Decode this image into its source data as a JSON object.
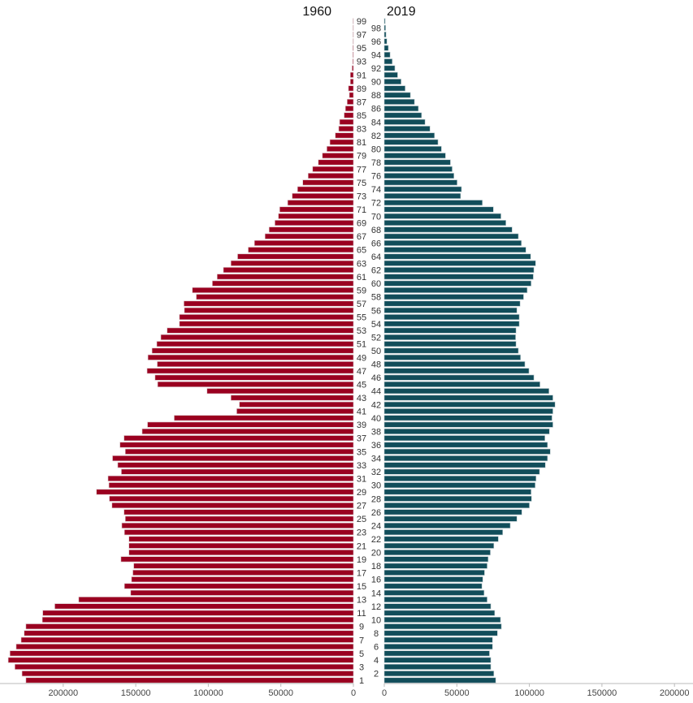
{
  "chart_data": {
    "type": "bar",
    "orientation": "horizontal-pyramid",
    "titles": {
      "left": "1960",
      "right": "2019"
    },
    "categories": [
      1,
      2,
      3,
      4,
      5,
      6,
      7,
      8,
      9,
      10,
      11,
      12,
      13,
      14,
      15,
      16,
      17,
      18,
      19,
      20,
      21,
      22,
      23,
      24,
      25,
      26,
      27,
      28,
      29,
      30,
      31,
      32,
      33,
      34,
      35,
      36,
      37,
      38,
      39,
      40,
      41,
      42,
      43,
      44,
      45,
      46,
      47,
      48,
      49,
      50,
      51,
      52,
      53,
      54,
      55,
      56,
      57,
      58,
      59,
      60,
      61,
      62,
      63,
      64,
      65,
      66,
      67,
      68,
      69,
      70,
      71,
      72,
      73,
      74,
      75,
      76,
      77,
      78,
      79,
      80,
      81,
      82,
      83,
      84,
      85,
      86,
      87,
      88,
      89,
      90,
      91,
      92,
      93,
      94,
      95,
      96,
      97,
      98,
      99
    ],
    "series": [
      {
        "name": "1960",
        "color": "#9a0020",
        "values": [
          225700,
          228400,
          233300,
          237900,
          236700,
          232400,
          229000,
          226900,
          225700,
          214400,
          214100,
          205800,
          189300,
          153500,
          157800,
          152900,
          152000,
          151400,
          160200,
          154700,
          154700,
          154700,
          157800,
          159600,
          157200,
          158100,
          166400,
          168200,
          177100,
          168500,
          169100,
          159900,
          162400,
          166000,
          157200,
          160900,
          158100,
          145600,
          141900,
          123500,
          80400,
          78600,
          84400,
          100900,
          134900,
          136700,
          142200,
          135200,
          141600,
          138800,
          135500,
          132700,
          128400,
          119900,
          119900,
          116500,
          116800,
          108300,
          111000,
          97200,
          93900,
          89600,
          84400,
          79800,
          72500,
          68200,
          60900,
          58100,
          54100,
          51700,
          50800,
          45300,
          42200,
          38500,
          34900,
          31200,
          28100,
          24200,
          21400,
          18300,
          16200,
          12500,
          10100,
          9500,
          6400,
          5500,
          4300,
          2800,
          3400,
          2100,
          2100,
          900,
          500,
          400,
          400,
          300,
          300,
          300,
          300
        ]
      },
      {
        "name": "2019",
        "color": "#114d5a",
        "values": [
          76800,
          75500,
          73400,
          73400,
          72500,
          74600,
          74600,
          78000,
          80700,
          80100,
          76100,
          73400,
          70900,
          68800,
          67300,
          67900,
          69100,
          70900,
          71600,
          73100,
          75500,
          78600,
          81600,
          86800,
          91400,
          94800,
          100000,
          101500,
          101200,
          104000,
          104600,
          107000,
          111000,
          112500,
          114400,
          112500,
          110700,
          113800,
          116200,
          115600,
          116200,
          117700,
          116200,
          113500,
          107300,
          103100,
          99700,
          96900,
          93900,
          92400,
          90800,
          90500,
          90800,
          93000,
          93000,
          91400,
          93600,
          96000,
          98500,
          101200,
          102700,
          103100,
          104300,
          100900,
          97600,
          94500,
          92400,
          88100,
          83800,
          80400,
          75200,
          67600,
          52600,
          53200,
          50200,
          48000,
          46800,
          45600,
          42200,
          39400,
          37000,
          34600,
          31500,
          28100,
          25700,
          23500,
          20800,
          18000,
          14400,
          11600,
          9200,
          7300,
          5500,
          4000,
          2800,
          1800,
          1200,
          900,
          600
        ]
      }
    ],
    "x_ticks_left": [
      "200000",
      "150000",
      "100000",
      "50000",
      "0"
    ],
    "x_ticks_right": [
      "0",
      "50000",
      "100000",
      "150000",
      "200000"
    ],
    "xlim": [
      0,
      200000
    ],
    "grid": false
  }
}
